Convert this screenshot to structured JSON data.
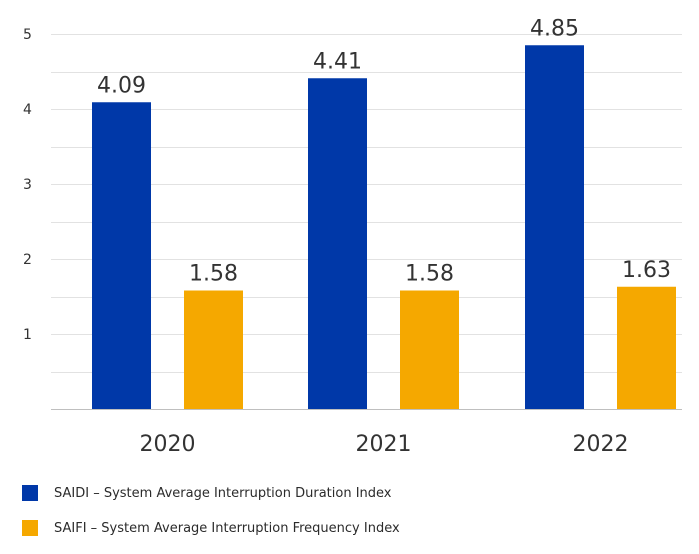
{
  "chart_data": {
    "type": "bar",
    "categories": [
      "2020",
      "2021",
      "2022"
    ],
    "series": [
      {
        "name": "SAIDI – System Average Interruption Duration Index",
        "values": [
          4.09,
          4.41,
          4.85
        ],
        "color": "#0038a8"
      },
      {
        "name": "SAIFI – System Average Interruption Frequency Index",
        "values": [
          1.58,
          1.58,
          1.63
        ],
        "color": "#f5a800"
      }
    ],
    "yticks": [
      "1",
      "2",
      "3",
      "4",
      "5"
    ],
    "ylim": [
      0,
      5
    ],
    "grid": true,
    "legend_position": "bottom-left",
    "title": "",
    "xlabel": "",
    "ylabel": ""
  }
}
